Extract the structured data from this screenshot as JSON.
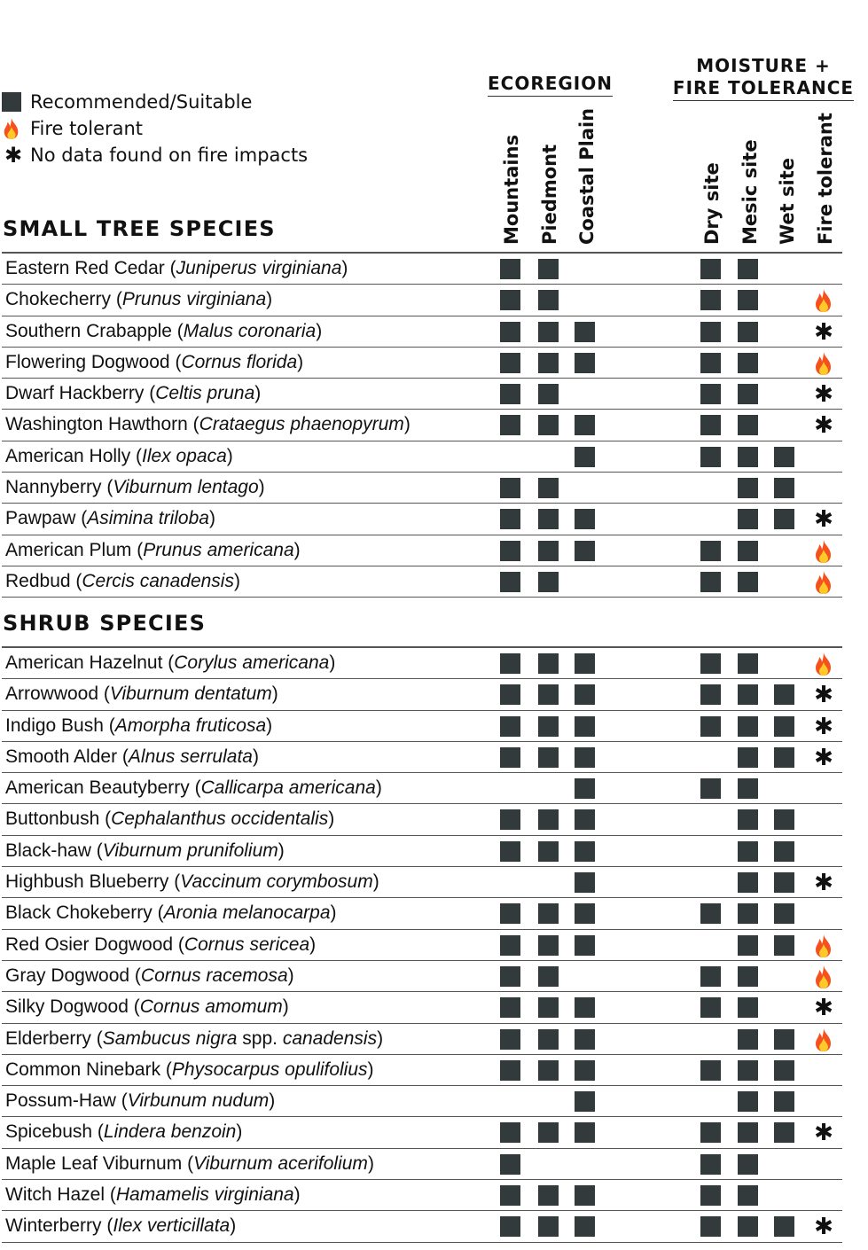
{
  "legend": {
    "items": [
      {
        "icon": "filled-square",
        "label": "Recommended/Suitable"
      },
      {
        "icon": "flame",
        "label": "Fire tolerant"
      },
      {
        "icon": "asterisk",
        "label": "No data found on fire impacts"
      }
    ]
  },
  "groups": {
    "ecoregion": "ECOREGION",
    "moisture_line1": "MOISTURE +",
    "moisture_line2": "FIRE TOLERANCE"
  },
  "columns": [
    "Mountains",
    "Piedmont",
    "Coastal Plain",
    "Dry site",
    "Mesic site",
    "Wet site",
    "Fire tolerant"
  ],
  "colors": {
    "square": "#333a3c",
    "rule": "#555555",
    "flame_outer": "#f4511e",
    "flame_inner": "#ffca28"
  },
  "sections": [
    {
      "title": "SMALL TREE SPECIES",
      "rows": [
        {
          "common": "Eastern Red Cedar",
          "scientific": "Juniperus virginiana",
          "mtn": true,
          "pied": true,
          "coast": false,
          "dry": true,
          "mesic": true,
          "wet": false,
          "fire": ""
        },
        {
          "common": "Chokecherry",
          "scientific": "Prunus virginiana",
          "mtn": true,
          "pied": true,
          "coast": false,
          "dry": true,
          "mesic": true,
          "wet": false,
          "fire": "flame"
        },
        {
          "common": "Southern Crabapple",
          "scientific": "Malus coronaria",
          "mtn": true,
          "pied": true,
          "coast": true,
          "dry": true,
          "mesic": true,
          "wet": false,
          "fire": "asterisk"
        },
        {
          "common": "Flowering Dogwood",
          "scientific": "Cornus florida",
          "mtn": true,
          "pied": true,
          "coast": true,
          "dry": true,
          "mesic": true,
          "wet": false,
          "fire": "flame"
        },
        {
          "common": "Dwarf Hackberry",
          "scientific": "Celtis pruna",
          "mtn": true,
          "pied": true,
          "coast": false,
          "dry": true,
          "mesic": true,
          "wet": false,
          "fire": "asterisk"
        },
        {
          "common": "Washington Hawthorn",
          "scientific": "Crataegus phaenopyrum",
          "mtn": true,
          "pied": true,
          "coast": true,
          "dry": true,
          "mesic": true,
          "wet": false,
          "fire": "asterisk"
        },
        {
          "common": "American Holly",
          "scientific": "Ilex opaca",
          "mtn": false,
          "pied": false,
          "coast": true,
          "dry": true,
          "mesic": true,
          "wet": true,
          "fire": ""
        },
        {
          "common": "Nannyberry",
          "scientific": "Viburnum lentago",
          "mtn": true,
          "pied": true,
          "coast": false,
          "dry": false,
          "mesic": true,
          "wet": true,
          "fire": ""
        },
        {
          "common": "Pawpaw",
          "scientific": "Asimina triloba",
          "mtn": true,
          "pied": true,
          "coast": true,
          "dry": false,
          "mesic": true,
          "wet": true,
          "fire": "asterisk"
        },
        {
          "common": "American Plum",
          "scientific": "Prunus americana",
          "mtn": true,
          "pied": true,
          "coast": true,
          "dry": true,
          "mesic": true,
          "wet": false,
          "fire": "flame"
        },
        {
          "common": "Redbud",
          "scientific": "Cercis canadensis",
          "mtn": true,
          "pied": true,
          "coast": false,
          "dry": true,
          "mesic": true,
          "wet": false,
          "fire": "flame"
        }
      ]
    },
    {
      "title": "SHRUB SPECIES",
      "rows": [
        {
          "common": "American Hazelnut",
          "scientific": "Corylus americana",
          "mtn": true,
          "pied": true,
          "coast": true,
          "dry": true,
          "mesic": true,
          "wet": false,
          "fire": "flame"
        },
        {
          "common": "Arrowwood",
          "scientific": "Viburnum dentatum",
          "mtn": true,
          "pied": true,
          "coast": true,
          "dry": true,
          "mesic": true,
          "wet": true,
          "fire": "asterisk"
        },
        {
          "common": "Indigo Bush",
          "scientific": "Amorpha fruticosa",
          "mtn": true,
          "pied": true,
          "coast": true,
          "dry": true,
          "mesic": true,
          "wet": true,
          "fire": "asterisk"
        },
        {
          "common": "Smooth Alder",
          "scientific": "Alnus serrulata",
          "mtn": true,
          "pied": true,
          "coast": true,
          "dry": false,
          "mesic": true,
          "wet": true,
          "fire": "asterisk"
        },
        {
          "common": "American Beautyberry",
          "scientific": "Callicarpa americana",
          "mtn": false,
          "pied": false,
          "coast": true,
          "dry": true,
          "mesic": true,
          "wet": false,
          "fire": ""
        },
        {
          "common": "Buttonbush",
          "scientific": "Cephalanthus occidentalis",
          "mtn": true,
          "pied": true,
          "coast": true,
          "dry": false,
          "mesic": true,
          "wet": true,
          "fire": ""
        },
        {
          "common": "Black-haw",
          "scientific": "Viburnum prunifolium",
          "mtn": true,
          "pied": true,
          "coast": true,
          "dry": false,
          "mesic": true,
          "wet": true,
          "fire": ""
        },
        {
          "common": "Highbush Blueberry",
          "scientific": "Vaccinum corymbosum",
          "mtn": false,
          "pied": false,
          "coast": true,
          "dry": false,
          "mesic": true,
          "wet": true,
          "fire": "asterisk"
        },
        {
          "common": "Black Chokeberry",
          "scientific": "Aronia melanocarpa",
          "mtn": true,
          "pied": true,
          "coast": true,
          "dry": true,
          "mesic": true,
          "wet": true,
          "fire": ""
        },
        {
          "common": "Red Osier Dogwood",
          "scientific": "Cornus sericea",
          "mtn": true,
          "pied": true,
          "coast": true,
          "dry": false,
          "mesic": true,
          "wet": true,
          "fire": "flame"
        },
        {
          "common": "Gray Dogwood",
          "scientific": "Cornus racemosa",
          "mtn": true,
          "pied": true,
          "coast": false,
          "dry": true,
          "mesic": true,
          "wet": false,
          "fire": "flame"
        },
        {
          "common": "Silky Dogwood",
          "scientific": "Cornus amomum",
          "mtn": true,
          "pied": true,
          "coast": true,
          "dry": true,
          "mesic": true,
          "wet": false,
          "fire": "asterisk"
        },
        {
          "common": "Elderberry",
          "scientific": "Sambucus nigra",
          "scientific_mid": " spp. ",
          "scientific_tail": "canadensis",
          "mtn": true,
          "pied": true,
          "coast": true,
          "dry": false,
          "mesic": true,
          "wet": true,
          "fire": "flame"
        },
        {
          "common": "Common Ninebark",
          "scientific": "Physocarpus opulifolius",
          "mtn": true,
          "pied": true,
          "coast": true,
          "dry": true,
          "mesic": true,
          "wet": true,
          "fire": ""
        },
        {
          "common": "Possum-Haw",
          "scientific": "Virbunum nudum",
          "mtn": false,
          "pied": false,
          "coast": true,
          "dry": false,
          "mesic": true,
          "wet": true,
          "fire": ""
        },
        {
          "common": "Spicebush",
          "scientific": "Lindera benzoin",
          "mtn": true,
          "pied": true,
          "coast": true,
          "dry": true,
          "mesic": true,
          "wet": true,
          "fire": "asterisk"
        },
        {
          "common": "Maple Leaf Viburnum",
          "scientific": "Viburnum acerifolium",
          "mtn": true,
          "pied": false,
          "coast": false,
          "dry": true,
          "mesic": true,
          "wet": false,
          "fire": ""
        },
        {
          "common": "Witch Hazel",
          "scientific": "Hamamelis virginiana",
          "mtn": true,
          "pied": true,
          "coast": true,
          "dry": true,
          "mesic": true,
          "wet": false,
          "fire": ""
        },
        {
          "common": "Winterberry",
          "scientific": "Ilex verticillata",
          "mtn": true,
          "pied": true,
          "coast": true,
          "dry": true,
          "mesic": true,
          "wet": true,
          "fire": "asterisk"
        }
      ]
    }
  ]
}
